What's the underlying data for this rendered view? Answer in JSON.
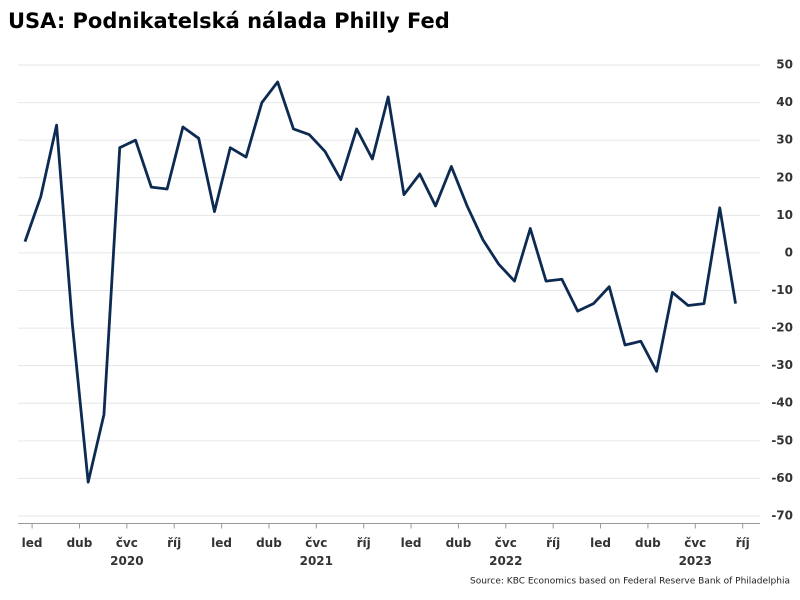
{
  "chart_data": {
    "type": "line",
    "title": "USA: Podnikatelská nálada Philly Fed",
    "source": "Source: KBC Economics based on Federal Reserve Bank of Philadelphia",
    "categories": [
      "led",
      null,
      null,
      "dub",
      null,
      null,
      "čvc",
      null,
      null,
      "říj",
      null,
      null,
      "led",
      null,
      null,
      "dub",
      null,
      null,
      "čvc",
      null,
      null,
      "říj",
      null,
      null,
      "led",
      null,
      null,
      "dub",
      null,
      null,
      "čvc",
      null,
      null,
      "říj",
      null,
      null,
      "led",
      null,
      null,
      "dub",
      null,
      null,
      "čvc",
      null,
      null,
      "říj"
    ],
    "year_labels": [
      "2020",
      "2021",
      "2022",
      "2023"
    ],
    "series": [
      {
        "name": "Philly Fed",
        "color": "#0d2b52",
        "values": [
          3,
          15,
          34,
          -19,
          -61,
          -43,
          28,
          30,
          17.5,
          17,
          33.5,
          30.5,
          11,
          28,
          25.5,
          40,
          45.5,
          33,
          31.5,
          27,
          19.5,
          33,
          25,
          41.5,
          15.5,
          21,
          12.5,
          23,
          12.5,
          3.5,
          -3,
          -7.5,
          6.5,
          -7.5,
          -7,
          -15.5,
          -13.5,
          -9,
          -24.5,
          -23.5,
          -31.5,
          -10.5,
          -14,
          -13.5,
          12,
          -13.5
        ]
      }
    ],
    "ylim": [
      -72,
      52
    ],
    "yticks": [
      50,
      40,
      30,
      20,
      10,
      0,
      -10,
      -20,
      -30,
      -40,
      -50,
      -60,
      -70
    ],
    "grid": true
  }
}
